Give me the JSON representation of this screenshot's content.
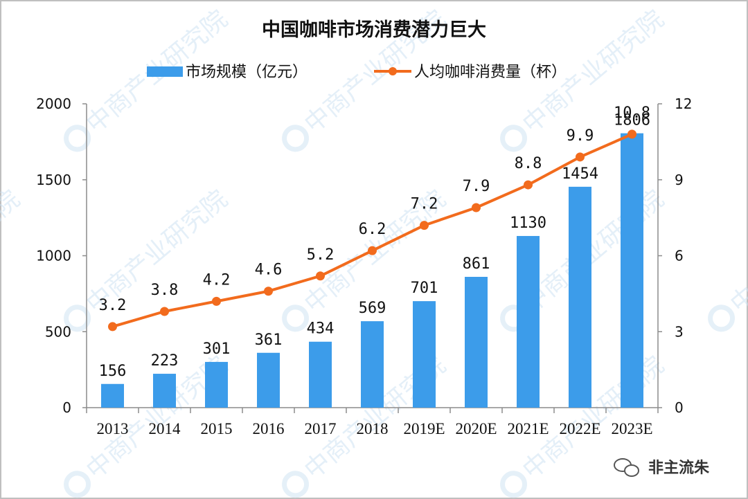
{
  "chart_data": {
    "type": "bar",
    "title": "中国咖啡市场消费潜力巨大",
    "categories": [
      "2013",
      "2014",
      "2015",
      "2016",
      "2017",
      "2018",
      "2019E",
      "2020E",
      "2021E",
      "2022E",
      "2023E"
    ],
    "series": [
      {
        "name": "市场规模（亿元）",
        "type": "bar",
        "axis": "left",
        "values": [
          156,
          223,
          301,
          361,
          434,
          569,
          701,
          861,
          1130,
          1454,
          1806
        ],
        "labels": [
          "156",
          "223",
          "301",
          "361",
          "434",
          "569",
          "701",
          "861",
          "1130",
          "1454",
          "1806"
        ]
      },
      {
        "name": "人均咖啡消费量（杯）",
        "type": "line",
        "axis": "right",
        "values": [
          3.2,
          3.8,
          4.2,
          4.6,
          5.2,
          6.2,
          7.2,
          7.9,
          8.8,
          9.9,
          10.8
        ],
        "labels": [
          "3.2",
          "3.8",
          "4.2",
          "4.6",
          "5.2",
          "6.2",
          "7.2",
          "7.9",
          "8.8",
          "9.9",
          "10.8"
        ]
      }
    ],
    "y_left": {
      "min": 0,
      "max": 2000,
      "ticks": [
        "0",
        "500",
        "1000",
        "1500",
        "2000"
      ]
    },
    "y_right": {
      "min": 0,
      "max": 12,
      "ticks": [
        "0",
        "3",
        "6",
        "9",
        "12"
      ]
    },
    "legend_position": "top",
    "grid": false
  },
  "colors": {
    "bar": "#3c9cea",
    "line": "#f26b1d",
    "watermark": "#cfe3f3"
  },
  "watermark": {
    "text": "中商产业研究院"
  },
  "footer": {
    "brand": "非主流朱"
  }
}
